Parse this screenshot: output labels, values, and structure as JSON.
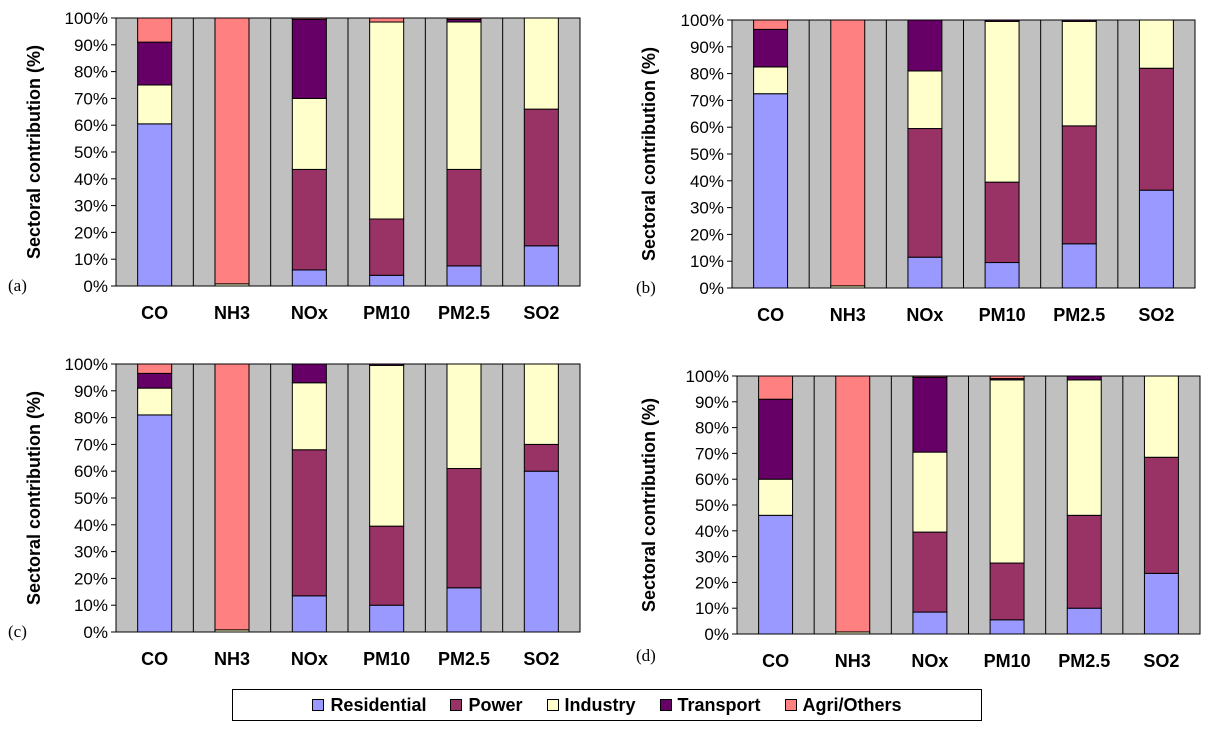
{
  "chart_data": [
    {
      "type": "bar",
      "stacked": true,
      "panel_label": "(a)",
      "ylabel": "Sectoral contribution (%)",
      "ylim": [
        0,
        100
      ],
      "yticks": [
        "0%",
        "10%",
        "20%",
        "30%",
        "40%",
        "50%",
        "60%",
        "70%",
        "80%",
        "90%",
        "100%"
      ],
      "categories": [
        "CO",
        "NH3",
        "NOx",
        "PM10",
        "PM2.5",
        "SO2"
      ],
      "series": [
        {
          "name": "Residential",
          "values": [
            60.5,
            0,
            6,
            4,
            7.5,
            15
          ]
        },
        {
          "name": "Power",
          "values": [
            0,
            0,
            37.5,
            21,
            36,
            51
          ]
        },
        {
          "name": "Industry",
          "values": [
            14.5,
            0.8,
            26.5,
            73.5,
            55,
            34
          ]
        },
        {
          "name": "Transport",
          "values": [
            16,
            0,
            29.5,
            0,
            1,
            0
          ]
        },
        {
          "name": "Agri/Others",
          "values": [
            9,
            99.2,
            0.5,
            1.5,
            0.5,
            0
          ]
        }
      ]
    },
    {
      "type": "bar",
      "stacked": true,
      "panel_label": "(b)",
      "ylabel": "Sectoral contribution (%)",
      "ylim": [
        0,
        100
      ],
      "yticks": [
        "0%",
        "10%",
        "20%",
        "30%",
        "40%",
        "50%",
        "60%",
        "70%",
        "80%",
        "90%",
        "100%"
      ],
      "categories": [
        "CO",
        "NH3",
        "NOx",
        "PM10",
        "PM2.5",
        "SO2"
      ],
      "series": [
        {
          "name": "Residential",
          "values": [
            72.5,
            0,
            11.5,
            9.5,
            16.5,
            36.5
          ]
        },
        {
          "name": "Power",
          "values": [
            0,
            0,
            48,
            30,
            44,
            45.5
          ]
        },
        {
          "name": "Industry",
          "values": [
            10,
            0.8,
            21.5,
            60,
            39,
            18
          ]
        },
        {
          "name": "Transport",
          "values": [
            14,
            0,
            19,
            0.5,
            0.5,
            0
          ]
        },
        {
          "name": "Agri/Others",
          "values": [
            3.5,
            99.2,
            0,
            0,
            0,
            0
          ]
        }
      ]
    },
    {
      "type": "bar",
      "stacked": true,
      "panel_label": "(c)",
      "ylabel": "Sectoral contribution (%)",
      "ylim": [
        0,
        100
      ],
      "yticks": [
        "0%",
        "10%",
        "20%",
        "30%",
        "40%",
        "50%",
        "60%",
        "70%",
        "80%",
        "90%",
        "100%"
      ],
      "categories": [
        "CO",
        "NH3",
        "NOx",
        "PM10",
        "PM2.5",
        "SO2"
      ],
      "series": [
        {
          "name": "Residential",
          "values": [
            81,
            0,
            13.5,
            10,
            16.5,
            60
          ]
        },
        {
          "name": "Power",
          "values": [
            0,
            0,
            54.5,
            29.5,
            44.5,
            10
          ]
        },
        {
          "name": "Industry",
          "values": [
            10,
            0.8,
            25,
            60,
            39,
            30
          ]
        },
        {
          "name": "Transport",
          "values": [
            5.5,
            0,
            7,
            0.5,
            0,
            0
          ]
        },
        {
          "name": "Agri/Others",
          "values": [
            3.5,
            99.2,
            0,
            0,
            0,
            0
          ]
        }
      ]
    },
    {
      "type": "bar",
      "stacked": true,
      "panel_label": "(d)",
      "ylabel": "Sectoral contribution (%)",
      "ylim": [
        0,
        100
      ],
      "yticks": [
        "0%",
        "10%",
        "20%",
        "30%",
        "40%",
        "50%",
        "60%",
        "70%",
        "80%",
        "90%",
        "100%"
      ],
      "categories": [
        "CO",
        "NH3",
        "NOx",
        "PM10",
        "PM2.5",
        "SO2"
      ],
      "series": [
        {
          "name": "Residential",
          "values": [
            46,
            0,
            8.5,
            5.5,
            10,
            23.5
          ]
        },
        {
          "name": "Power",
          "values": [
            0,
            0,
            31,
            22,
            36,
            45
          ]
        },
        {
          "name": "Industry",
          "values": [
            14,
            0.8,
            31,
            71,
            52.5,
            31.5
          ]
        },
        {
          "name": "Transport",
          "values": [
            31,
            0,
            29,
            0.5,
            1.5,
            0
          ]
        },
        {
          "name": "Agri/Others",
          "values": [
            9,
            99.2,
            0.5,
            1,
            0,
            0
          ]
        }
      ]
    }
  ],
  "legend": {
    "position": "bottom",
    "items": [
      {
        "label": "Residential",
        "color": "#9999ff"
      },
      {
        "label": "Power",
        "color": "#993366"
      },
      {
        "label": "Industry",
        "color": "#ffffcc"
      },
      {
        "label": "Transport",
        "color": "#660066"
      },
      {
        "label": "Agri/Others",
        "color": "#ff8080"
      }
    ]
  },
  "style": {
    "plot_background": "#c0c0c0",
    "bar_border": "#000000"
  }
}
